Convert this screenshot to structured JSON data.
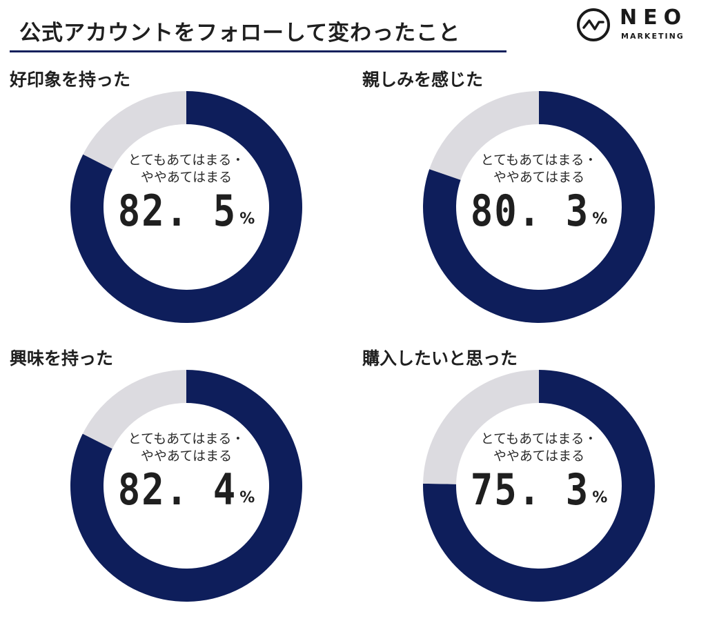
{
  "header": {
    "title": "公式アカウントをフォローして変わったこと"
  },
  "logo": {
    "word": "NEO",
    "sub": "MARKETING"
  },
  "colors": {
    "filled": "#0e1e5b",
    "remaining": "#dcdbe0"
  },
  "chart_data": [
    {
      "type": "pie",
      "title": "好印象を持った",
      "center_label": "とてもあてはまる・\nややあてはまる",
      "value": 82.5,
      "value_text": "82. 5",
      "unit": "%"
    },
    {
      "type": "pie",
      "title": "親しみを感じた",
      "center_label": "とてもあてはまる・\nややあてはまる",
      "value": 80.3,
      "value_text": "80. 3",
      "unit": "%"
    },
    {
      "type": "pie",
      "title": "興味を持った",
      "center_label": "とてもあてはまる・\nややあてはまる",
      "value": 82.4,
      "value_text": "82. 4",
      "unit": "%"
    },
    {
      "type": "pie",
      "title": "購入したいと思った",
      "center_label": "とてもあてはまる・\nややあてはまる",
      "value": 75.3,
      "value_text": "75. 3",
      "unit": "%"
    }
  ]
}
